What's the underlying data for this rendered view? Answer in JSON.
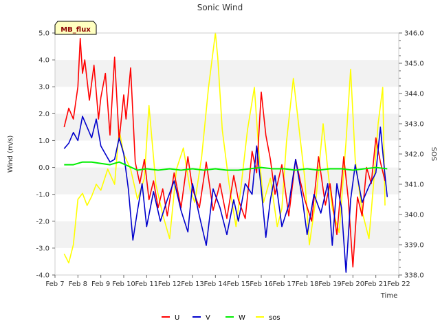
{
  "chart_data": {
    "type": "line",
    "title": "Sonic Wind",
    "xlabel": "Time",
    "ylabel": "Wind (m/s)",
    "ylabel_right": "SOS",
    "site_tag": "MB_flux",
    "x_ticks": [
      "Feb 7",
      "Feb 8",
      "Feb 9",
      "Feb 10",
      "Feb 11",
      "Feb 12",
      "Feb 13",
      "Feb 14",
      "Feb 15",
      "Feb 16",
      "Feb 17",
      "Feb 18",
      "Feb 19",
      "Feb 20",
      "Feb 21",
      "Feb 22"
    ],
    "x_range": [
      7,
      22
    ],
    "ylim": [
      -4.0,
      5.0
    ],
    "y_ticks": [
      "-4.0",
      "-3.0",
      "-2.0",
      "-1.0",
      "0.0",
      "1.0",
      "2.0",
      "3.0",
      "4.0",
      "5.0"
    ],
    "ylim_right": [
      338.0,
      346.0
    ],
    "y_ticks_right": [
      "338.0",
      "339.0",
      "340.0",
      "341.0",
      "342.0",
      "343.0",
      "344.0",
      "345.0",
      "346.0"
    ],
    "grid": "horizontal bands",
    "legend_position": "bottom",
    "colors": {
      "U": "#ff0000",
      "V": "#0000cc",
      "W": "#00ee00",
      "sos": "#ffff00"
    },
    "series": [
      {
        "name": "U",
        "axis": "left",
        "x": [
          7.4,
          7.6,
          7.8,
          8.0,
          8.1,
          8.2,
          8.3,
          8.5,
          8.7,
          8.9,
          9.0,
          9.2,
          9.4,
          9.6,
          9.8,
          10.0,
          10.1,
          10.3,
          10.5,
          10.7,
          10.9,
          11.1,
          11.3,
          11.5,
          11.7,
          11.9,
          12.2,
          12.5,
          12.8,
          13.0,
          13.3,
          13.6,
          13.9,
          14.2,
          14.5,
          14.8,
          15.0,
          15.3,
          15.6,
          15.8,
          16.0,
          16.2,
          16.4,
          16.6,
          16.9,
          17.2,
          17.5,
          17.7,
          17.9,
          18.2,
          18.5,
          18.8,
          19.0,
          19.3,
          19.6,
          19.8,
          20.0,
          20.2,
          20.4,
          20.6,
          20.8,
          21.0,
          21.2,
          21.4
        ],
        "values": [
          1.5,
          2.2,
          1.8,
          3.0,
          4.8,
          3.5,
          4.0,
          2.5,
          3.8,
          1.8,
          2.6,
          3.5,
          1.2,
          4.1,
          1.0,
          2.7,
          1.8,
          3.7,
          0.2,
          -0.6,
          0.3,
          -1.2,
          -0.5,
          -1.5,
          -0.8,
          -1.8,
          -0.2,
          -1.5,
          0.4,
          -0.8,
          -1.5,
          0.2,
          -1.6,
          -0.6,
          -1.9,
          -0.3,
          -1.2,
          -1.9,
          0.6,
          -0.2,
          2.8,
          1.2,
          0.3,
          -1.0,
          0.1,
          -1.8,
          0.3,
          -0.5,
          -1.2,
          -2.0,
          0.4,
          -1.4,
          -0.6,
          -2.5,
          0.4,
          -1.2,
          -3.7,
          -1.1,
          -1.8,
          0.0,
          -0.6,
          1.1,
          0.2,
          -0.5
        ]
      },
      {
        "name": "V",
        "axis": "left",
        "x": [
          7.4,
          7.6,
          7.8,
          8.0,
          8.2,
          8.4,
          8.6,
          8.8,
          9.0,
          9.2,
          9.4,
          9.6,
          9.8,
          10.0,
          10.2,
          10.4,
          10.6,
          10.8,
          11.0,
          11.3,
          11.6,
          11.9,
          12.2,
          12.5,
          12.8,
          13.0,
          13.3,
          13.6,
          13.9,
          14.2,
          14.5,
          14.8,
          15.0,
          15.3,
          15.6,
          15.8,
          16.0,
          16.2,
          16.4,
          16.6,
          16.9,
          17.2,
          17.5,
          17.8,
          18.0,
          18.3,
          18.6,
          18.9,
          19.1,
          19.3,
          19.5,
          19.7,
          19.9,
          20.1,
          20.4,
          20.7,
          21.0,
          21.2,
          21.4,
          21.5
        ],
        "values": [
          0.7,
          0.9,
          1.3,
          1.0,
          1.9,
          1.5,
          1.1,
          1.8,
          0.8,
          0.5,
          0.2,
          0.3,
          1.1,
          0.5,
          -0.8,
          -2.7,
          -1.6,
          -0.6,
          -2.2,
          -0.9,
          -2.0,
          -1.2,
          -0.5,
          -1.6,
          -2.4,
          -0.6,
          -1.8,
          -2.9,
          -0.8,
          -1.5,
          -2.5,
          -1.2,
          -2.0,
          -0.6,
          -1.0,
          0.8,
          -0.8,
          -2.6,
          -1.2,
          -0.3,
          -2.2,
          -1.4,
          0.3,
          -1.2,
          -2.5,
          -1.0,
          -1.7,
          -0.6,
          -2.9,
          -0.6,
          -1.5,
          -3.9,
          -1.2,
          0.1,
          -1.3,
          -0.7,
          -0.2,
          1.5,
          -0.3,
          -1.1
        ]
      },
      {
        "name": "W",
        "axis": "left",
        "x": [
          7.4,
          7.8,
          8.2,
          8.6,
          9.0,
          9.4,
          9.8,
          10.2,
          10.6,
          11.0,
          11.5,
          12.0,
          12.5,
          13.0,
          13.5,
          14.0,
          14.5,
          15.0,
          15.5,
          16.0,
          16.5,
          17.0,
          17.5,
          18.0,
          18.5,
          19.0,
          19.5,
          20.0,
          20.5,
          21.0,
          21.5
        ],
        "values": [
          0.1,
          0.1,
          0.2,
          0.2,
          0.15,
          0.1,
          0.2,
          0.05,
          -0.1,
          -0.05,
          -0.1,
          -0.05,
          -0.1,
          -0.05,
          -0.1,
          -0.05,
          -0.1,
          -0.1,
          -0.05,
          0.0,
          -0.05,
          -0.05,
          -0.1,
          -0.05,
          -0.1,
          -0.05,
          -0.05,
          -0.1,
          -0.05,
          0.0,
          -0.05
        ]
      },
      {
        "name": "sos",
        "axis": "right",
        "x": [
          7.4,
          7.6,
          7.8,
          8.0,
          8.2,
          8.4,
          8.6,
          8.8,
          9.0,
          9.3,
          9.6,
          9.8,
          10.0,
          10.3,
          10.6,
          10.9,
          11.1,
          11.4,
          11.7,
          12.0,
          12.3,
          12.6,
          12.9,
          13.1,
          13.4,
          13.7,
          14.0,
          14.1,
          14.3,
          14.6,
          14.9,
          15.1,
          15.4,
          15.7,
          15.9,
          16.1,
          16.4,
          16.7,
          16.9,
          17.1,
          17.4,
          17.7,
          17.9,
          18.1,
          18.4,
          18.7,
          18.9,
          19.1,
          19.4,
          19.7,
          19.9,
          20.1,
          20.4,
          20.7,
          20.9,
          21.1,
          21.3,
          21.4
        ],
        "values": [
          338.7,
          338.4,
          339.0,
          340.5,
          340.7,
          340.3,
          340.6,
          341.0,
          340.8,
          341.5,
          341.0,
          342.8,
          342.0,
          341.5,
          340.5,
          341.2,
          343.6,
          341.0,
          340.0,
          339.2,
          341.5,
          342.2,
          340.8,
          340.4,
          341.9,
          344.2,
          346.0,
          345.2,
          342.8,
          341.0,
          339.6,
          340.8,
          342.8,
          344.2,
          342.0,
          340.4,
          341.2,
          339.6,
          340.2,
          342.4,
          344.5,
          342.5,
          341.2,
          339.0,
          340.6,
          343.0,
          341.5,
          340.2,
          339.4,
          342.4,
          344.8,
          341.8,
          340.1,
          339.2,
          341.0,
          343.0,
          344.2,
          340.3
        ]
      }
    ]
  }
}
